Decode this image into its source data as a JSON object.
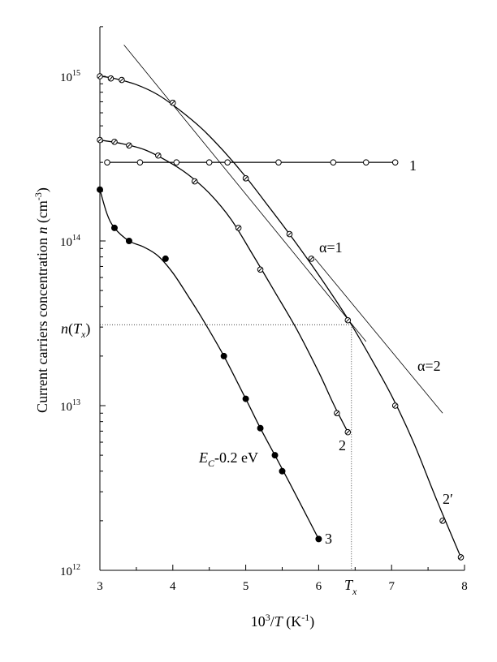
{
  "chart_data": {
    "type": "scatter",
    "x_scale": "linear",
    "y_scale": "log",
    "xlim": [
      3,
      8
    ],
    "ylim": [
      1000000000000.0,
      2000000000000000.0
    ],
    "xlabel": "10³/T (K⁻¹)",
    "ylabel": "Current carriers concentration n (cm⁻³)",
    "x_ticks": [
      "3",
      "4",
      "5",
      "6",
      "7",
      "8"
    ],
    "y_ticks": [
      {
        "value": 1000000000000.0,
        "base": "10",
        "exp": "12"
      },
      {
        "value": 10000000000000.0,
        "base": "10",
        "exp": "13"
      },
      {
        "value": 100000000000000.0,
        "base": "10",
        "exp": "14"
      },
      {
        "value": 1000000000000000.0,
        "base": "10",
        "exp": "15"
      }
    ],
    "series": [
      {
        "name": "1",
        "marker": "open-circle",
        "points": [
          [
            3.1,
            300000000000000.0
          ],
          [
            3.55,
            300000000000000.0
          ],
          [
            4.05,
            300000000000000.0
          ],
          [
            4.5,
            300000000000000.0
          ],
          [
            4.75,
            300000000000000.0
          ],
          [
            5.45,
            300000000000000.0
          ],
          [
            6.2,
            300000000000000.0
          ],
          [
            6.65,
            300000000000000.0
          ],
          [
            7.05,
            300000000000000.0
          ]
        ],
        "curve": [
          [
            3.1,
            300000000000000.0
          ],
          [
            7.05,
            300000000000000.0
          ]
        ]
      },
      {
        "name": "2",
        "marker": "crossed-circle",
        "points": [
          [
            3.0,
            410000000000000.0
          ],
          [
            3.2,
            400000000000000.0
          ],
          [
            3.4,
            380000000000000.0
          ],
          [
            3.8,
            330000000000000.0
          ],
          [
            4.3,
            230000000000000.0
          ],
          [
            4.9,
            120000000000000.0
          ],
          [
            5.2,
            67000000000000.0
          ],
          [
            6.25,
            9000000000000.0
          ],
          [
            6.4,
            6900000000000.0
          ]
        ],
        "curve": [
          [
            3.0,
            410000000000000.0
          ],
          [
            3.3,
            390000000000000.0
          ],
          [
            3.6,
            360000000000000.0
          ],
          [
            3.9,
            310000000000000.0
          ],
          [
            4.2,
            255000000000000.0
          ],
          [
            4.5,
            195000000000000.0
          ],
          [
            4.8,
            135000000000000.0
          ],
          [
            5.1,
            82000000000000.0
          ],
          [
            5.4,
            49000000000000.0
          ],
          [
            5.7,
            29000000000000.0
          ],
          [
            6.0,
            16000000000000.0
          ],
          [
            6.2,
            10300000000000.0
          ],
          [
            6.4,
            6900000000000.0
          ]
        ]
      },
      {
        "name": "2′",
        "marker": "crossed-circle",
        "points": [
          [
            3.0,
            1000000000000000.0
          ],
          [
            3.15,
            970000000000000.0
          ],
          [
            3.3,
            950000000000000.0
          ],
          [
            4.0,
            690000000000000.0
          ],
          [
            5.0,
            240000000000000.0
          ],
          [
            5.6,
            110000000000000.0
          ],
          [
            5.9,
            78000000000000.0
          ],
          [
            6.4,
            33000000000000.0
          ],
          [
            7.05,
            10000000000000.0
          ],
          [
            7.7,
            2000000000000.0
          ],
          [
            7.95,
            1200000000000.0
          ]
        ],
        "curve": [
          [
            3.0,
            1000000000000000.0
          ],
          [
            3.2,
            970000000000000.0
          ],
          [
            3.5,
            890000000000000.0
          ],
          [
            3.8,
            770000000000000.0
          ],
          [
            4.1,
            620000000000000.0
          ],
          [
            4.4,
            480000000000000.0
          ],
          [
            4.7,
            350000000000000.0
          ],
          [
            5.0,
            245000000000000.0
          ],
          [
            5.3,
            165000000000000.0
          ],
          [
            5.6,
            110000000000000.0
          ],
          [
            5.9,
            72000000000000.0
          ],
          [
            6.2,
            46000000000000.0
          ],
          [
            6.45,
            31000000000000.0
          ],
          [
            6.7,
            20000000000000.0
          ],
          [
            7.0,
            11500000000000.0
          ],
          [
            7.3,
            6000000000000.0
          ],
          [
            7.6,
            2800000000000.0
          ],
          [
            7.95,
            1200000000000.0
          ]
        ]
      },
      {
        "name": "3",
        "marker": "filled-circle",
        "points": [
          [
            3.0,
            205000000000000.0
          ],
          [
            3.2,
            120000000000000.0
          ],
          [
            3.4,
            100000000000000.0
          ],
          [
            3.9,
            78000000000000.0
          ],
          [
            4.7,
            20000000000000.0
          ],
          [
            5.0,
            11000000000000.0
          ],
          [
            5.2,
            7300000000000.0
          ],
          [
            5.4,
            5000000000000.0
          ],
          [
            5.5,
            4000000000000.0
          ],
          [
            6.0,
            1550000000000.0
          ]
        ],
        "curve": [
          [
            3.0,
            205000000000000.0
          ],
          [
            3.1,
            145000000000000.0
          ],
          [
            3.2,
            120000000000000.0
          ],
          [
            3.4,
            100000000000000.0
          ],
          [
            3.6,
            92000000000000.0
          ],
          [
            3.8,
            81000000000000.0
          ],
          [
            4.0,
            64000000000000.0
          ],
          [
            4.2,
            47000000000000.0
          ],
          [
            4.4,
            34000000000000.0
          ],
          [
            4.7,
            20000000000000.0
          ],
          [
            5.0,
            11000000000000.0
          ],
          [
            5.2,
            7300000000000.0
          ],
          [
            5.4,
            5000000000000.0
          ],
          [
            5.6,
            3400000000000.0
          ],
          [
            5.8,
            2300000000000.0
          ],
          [
            6.0,
            1550000000000.0
          ]
        ]
      }
    ],
    "tangents": [
      {
        "name": "α=1",
        "from": [
          3.33,
          1550000000000000.0
        ],
        "to": [
          6.65,
          24500000000000.0
        ]
      },
      {
        "name": "α=2",
        "from": [
          5.95,
          78000000000000.0
        ],
        "to": [
          7.7,
          9000000000000.0
        ]
      }
    ],
    "reference_point": {
      "x": 6.45,
      "y": 31000000000000.0,
      "x_label": "T",
      "x_label_sub": "x",
      "y_label": "n(T",
      "y_label_sub": "x",
      "y_label_close": ")"
    },
    "annotations": {
      "energy_main": "E",
      "energy_sub": "C",
      "energy_rest": "-0.2 eV",
      "alpha1": "α=1",
      "alpha2": "α=2"
    }
  }
}
